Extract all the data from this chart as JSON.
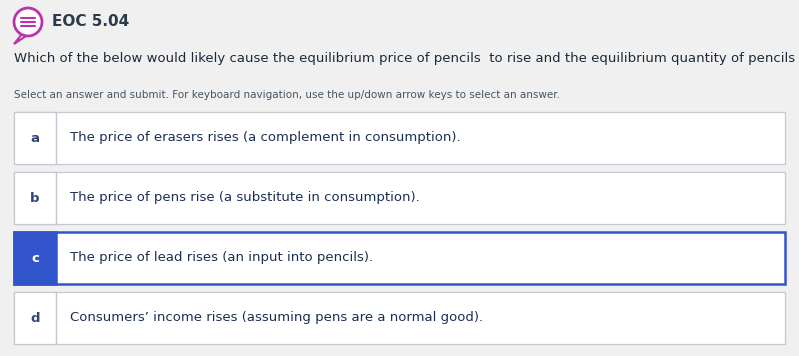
{
  "title": "EOC 5.04",
  "question": "Which of the below would likely cause the equilibrium price of pencils  to rise and the equilibrium quantity of pencils to fall?",
  "instruction": "Select an answer and submit. For keyboard navigation, use the up/down arrow keys to select an answer.",
  "options": [
    {
      "label": "a",
      "text": "The price of erasers rises (a complement in consumption).",
      "selected": false
    },
    {
      "label": "b",
      "text": "The price of pens rise (a substitute in consumption).",
      "selected": false
    },
    {
      "label": "c",
      "text": "The price of lead rises (an input into pencils).",
      "selected": true
    },
    {
      "label": "d",
      "text": "Consumers’ income rises (assuming pens are a normal good).",
      "selected": false
    }
  ],
  "bg_color": "#f0f0f0",
  "box_bg": "#ffffff",
  "box_border_color": "#c8c8d0",
  "selected_label_bg": "#3355cc",
  "selected_label_text": "#ffffff",
  "selected_border": "#3355cc",
  "normal_label_text": "#334477",
  "option_text_color": "#1a2e55",
  "title_color": "#2a3a4a",
  "question_color": "#1a2a3a",
  "instruction_color": "#445566",
  "icon_color": "#bb33aa"
}
